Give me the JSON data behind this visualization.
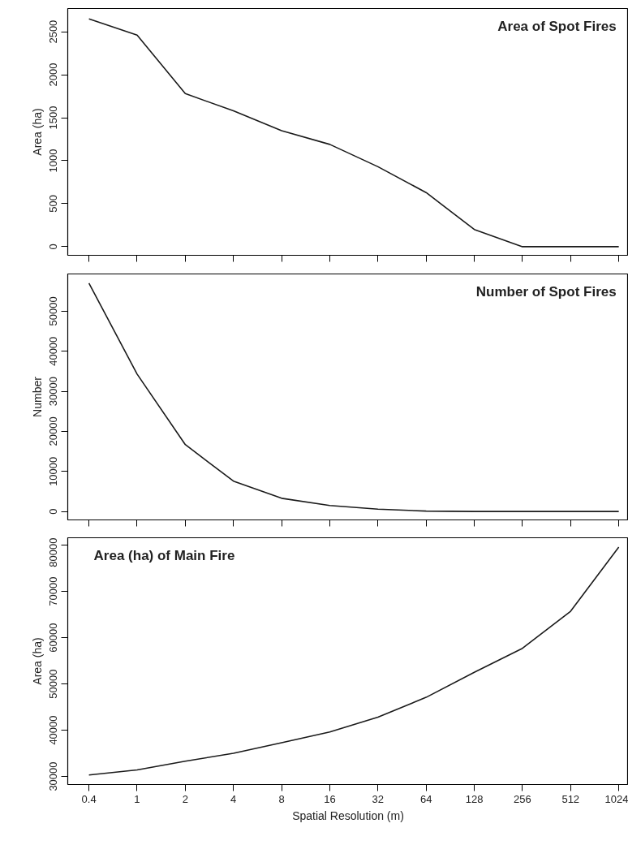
{
  "chart_data": [
    {
      "type": "line",
      "title": "Area of Spot Fires",
      "ylabel": "Area (ha)",
      "tick_labels": "y",
      "color": "#1a1a1a",
      "categories": [
        "0.4",
        "1",
        "2",
        "4",
        "8",
        "16",
        "32",
        "64",
        "128",
        "256",
        "512",
        "1024"
      ],
      "values": [
        2650,
        2460,
        1780,
        1580,
        1350,
        1190,
        930,
        630,
        200,
        0,
        0,
        0
      ],
      "ylim": [
        -100,
        2770
      ],
      "yticks": [
        0,
        500,
        1000,
        1500,
        2000,
        2500
      ]
    },
    {
      "type": "line",
      "title": "Number of Spot Fires",
      "ylabel": "Number",
      "tick_labels": "y",
      "color": "#1a1a1a",
      "categories": [
        "0.4",
        "1",
        "2",
        "4",
        "8",
        "16",
        "32",
        "64",
        "128",
        "256",
        "512",
        "1024"
      ],
      "values": [
        57000,
        34300,
        16700,
        7600,
        3300,
        1500,
        600,
        100,
        0,
        0,
        0,
        0
      ],
      "ylim": [
        -2100,
        59300
      ],
      "yticks": [
        0,
        10000,
        20000,
        30000,
        40000,
        50000
      ]
    },
    {
      "type": "line",
      "title": "Area (ha) of Main Fire",
      "ylabel": "Area (ha)",
      "xlabel": "Spatial Resolution (m)",
      "color": "#1a1a1a",
      "categories": [
        "0.4",
        "1",
        "2",
        "4",
        "8",
        "16",
        "32",
        "64",
        "128",
        "256",
        "512",
        "1024"
      ],
      "values": [
        30300,
        31400,
        33300,
        35000,
        37300,
        39600,
        42800,
        47100,
        52500,
        57700,
        65700,
        79600
      ],
      "ylim": [
        28250,
        81600
      ],
      "yticks": [
        30000,
        40000,
        50000,
        60000,
        70000,
        80000
      ]
    }
  ]
}
